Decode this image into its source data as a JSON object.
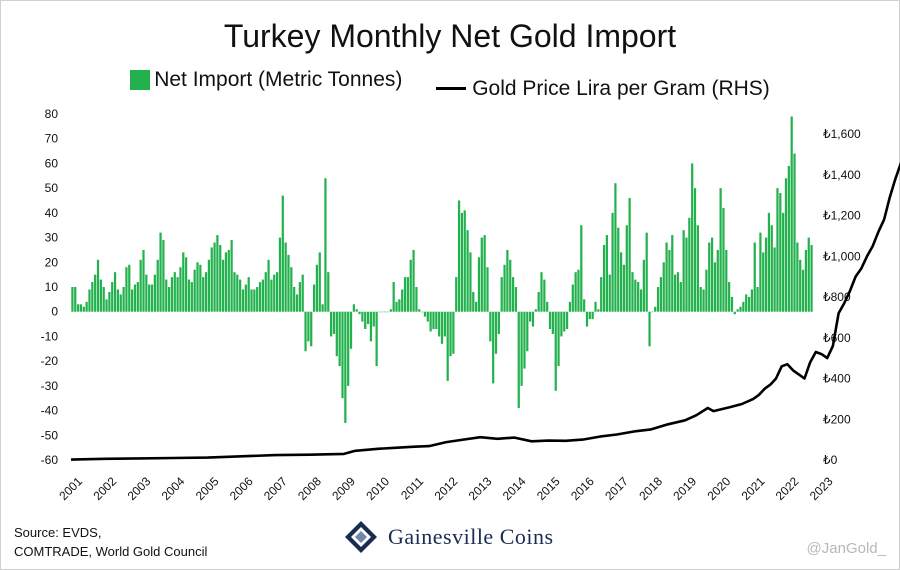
{
  "header": {
    "title": "Turkey Monthly Net Gold Import",
    "legend_bar": "Net Import (Metric Tonnes)",
    "legend_line": "Gold Price Lira per Gram (RHS)"
  },
  "footer": {
    "source_line1": "Source: EVDS,",
    "source_line2": "COMTRADE, World Gold Council",
    "brand": "Gainesville Coins",
    "credit": "@JanGold_"
  },
  "colors": {
    "bar": "#22b14c",
    "line": "#000000",
    "brand": "#1a2c52"
  },
  "chart_data": {
    "type": "bar",
    "title": "Turkey Monthly Net Gold Import",
    "x_start": "2001-01",
    "frequency": "monthly",
    "x_tick_labels": [
      "2001",
      "2002",
      "2003",
      "2004",
      "2005",
      "2006",
      "2007",
      "2008",
      "2009",
      "2010",
      "2011",
      "2012",
      "2013",
      "2014",
      "2015",
      "2016",
      "2017",
      "2018",
      "2019",
      "2020",
      "2021",
      "2022",
      "2023"
    ],
    "y_left": {
      "min": -60,
      "max": 80,
      "ticks": [
        -60,
        -50,
        -40,
        -30,
        -20,
        -10,
        0,
        10,
        20,
        30,
        40,
        50,
        60,
        70,
        80
      ]
    },
    "y_right": {
      "min": 0,
      "max": 1700,
      "ticks": [
        0,
        200,
        400,
        600,
        800,
        1000,
        1200,
        1400,
        1600
      ],
      "tick_labels": [
        "₺0",
        "₺200",
        "₺400",
        "₺600",
        "₺800",
        "₺1,000",
        "₺1,200",
        "₺1,400",
        "₺1,600"
      ]
    },
    "series": [
      {
        "name": "Net Import (Metric Tonnes)",
        "type": "bar",
        "axis": "left",
        "values": [
          10,
          10,
          3,
          3,
          2,
          4,
          9,
          12,
          15,
          21,
          13,
          10,
          5,
          8,
          12,
          16,
          9,
          7,
          10,
          18,
          19,
          9,
          11,
          12,
          21,
          25,
          15,
          11,
          11,
          15,
          21,
          32,
          29,
          13,
          10,
          14,
          16,
          14,
          18,
          24,
          22,
          13,
          12,
          17,
          20,
          19,
          14,
          16,
          21,
          26,
          28,
          31,
          27,
          21,
          24,
          25,
          29,
          16,
          15,
          13,
          9,
          11,
          14,
          9,
          9,
          10,
          12,
          13,
          16,
          21,
          13,
          15,
          16,
          30,
          47,
          28,
          23,
          18,
          10,
          7,
          12,
          15,
          -16,
          -12,
          -14,
          11,
          19,
          24,
          3,
          54,
          16,
          -10,
          -9,
          -18,
          -22,
          -35,
          -45,
          -30,
          -15,
          3,
          1,
          -1,
          -4,
          -7,
          -5,
          -12,
          -6,
          -22,
          0,
          0,
          0,
          0,
          1,
          12,
          4,
          5,
          9,
          14,
          14,
          21,
          25,
          10,
          1,
          0,
          -2,
          -4,
          -8,
          -7,
          -7,
          -10,
          -13,
          -10,
          -28,
          -18,
          -17,
          14,
          45,
          40,
          41,
          33,
          24,
          8,
          4,
          22,
          30,
          31,
          18,
          -12,
          -29,
          -17,
          -9,
          14,
          19,
          25,
          21,
          14,
          10,
          -39,
          -30,
          -23,
          -16,
          -4,
          -6,
          1,
          8,
          16,
          13,
          4,
          -7,
          -9,
          -32,
          -22,
          -10,
          -8,
          -7,
          4,
          11,
          16,
          17,
          35,
          5,
          -6,
          -3,
          -3,
          4,
          1,
          14,
          27,
          31,
          15,
          40,
          52,
          34,
          24,
          19,
          35,
          46,
          16,
          13,
          12,
          9,
          21,
          32,
          -14,
          0,
          2,
          10,
          14,
          20,
          28,
          25,
          31,
          15,
          16,
          12,
          33,
          30,
          38,
          60,
          50,
          35,
          10,
          9,
          17,
          28,
          30,
          20,
          25,
          50,
          42,
          25,
          12,
          6,
          -1,
          1,
          2,
          4,
          7,
          6,
          9,
          28,
          10,
          32,
          24,
          30,
          40,
          35,
          26,
          50,
          48,
          40,
          54,
          59,
          79,
          64,
          28,
          21,
          17,
          25,
          30,
          27
        ]
      },
      {
        "name": "Gold Price Lira per Gram (RHS)",
        "type": "line",
        "axis": "right",
        "points": [
          [
            0,
            2
          ],
          [
            12,
            6
          ],
          [
            24,
            8
          ],
          [
            36,
            10
          ],
          [
            48,
            12
          ],
          [
            60,
            18
          ],
          [
            72,
            24
          ],
          [
            84,
            26
          ],
          [
            96,
            30
          ],
          [
            100,
            45
          ],
          [
            108,
            55
          ],
          [
            114,
            60
          ],
          [
            120,
            65
          ],
          [
            126,
            68
          ],
          [
            132,
            88
          ],
          [
            138,
            100
          ],
          [
            144,
            112
          ],
          [
            150,
            104
          ],
          [
            156,
            110
          ],
          [
            162,
            92
          ],
          [
            168,
            95
          ],
          [
            174,
            94
          ],
          [
            180,
            100
          ],
          [
            186,
            115
          ],
          [
            192,
            125
          ],
          [
            198,
            140
          ],
          [
            204,
            150
          ],
          [
            210,
            175
          ],
          [
            216,
            195
          ],
          [
            220,
            220
          ],
          [
            224,
            255
          ],
          [
            226,
            240
          ],
          [
            232,
            260
          ],
          [
            236,
            275
          ],
          [
            240,
            300
          ],
          [
            242,
            320
          ],
          [
            244,
            350
          ],
          [
            246,
            370
          ],
          [
            248,
            400
          ],
          [
            250,
            460
          ],
          [
            252,
            470
          ],
          [
            254,
            440
          ],
          [
            256,
            420
          ],
          [
            258,
            400
          ],
          [
            260,
            480
          ],
          [
            262,
            530
          ],
          [
            264,
            520
          ],
          [
            266,
            500
          ],
          [
            268,
            560
          ],
          [
            270,
            720
          ],
          [
            272,
            770
          ],
          [
            274,
            830
          ],
          [
            276,
            900
          ],
          [
            278,
            940
          ],
          [
            280,
            1000
          ],
          [
            282,
            1050
          ],
          [
            284,
            1120
          ],
          [
            286,
            1180
          ],
          [
            288,
            1290
          ],
          [
            290,
            1380
          ],
          [
            292,
            1460
          ],
          [
            293,
            1490
          ]
        ]
      }
    ]
  }
}
